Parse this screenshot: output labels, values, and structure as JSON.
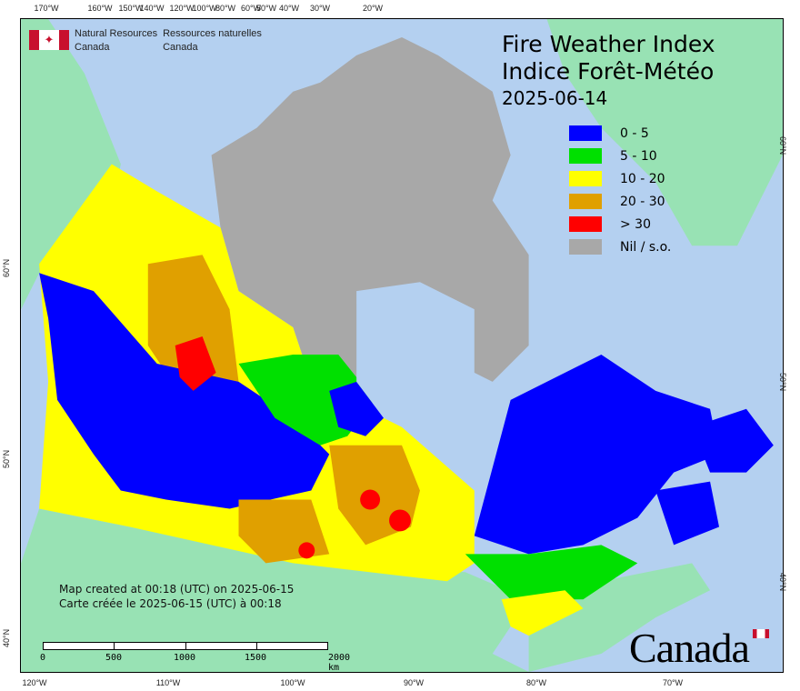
{
  "header": {
    "agency_en_1": "Natural Resources",
    "agency_en_2": "Canada",
    "agency_fr_1": "Ressources naturelles",
    "agency_fr_2": "Canada"
  },
  "title": {
    "en": "Fire Weather Index",
    "fr": "Indice Forêt-Météo",
    "date": "2025-06-14"
  },
  "legend": [
    {
      "label": "0 - 5",
      "color": "#0000ff"
    },
    {
      "label": "5 - 10",
      "color": "#00e000"
    },
    {
      "label": "10 - 20",
      "color": "#ffff00"
    },
    {
      "label": "20 - 30",
      "color": "#e0a000"
    },
    {
      "label": "> 30",
      "color": "#ff0000"
    },
    {
      "label": "Nil / s.o.",
      "color": "#a8a8a8"
    }
  ],
  "colors": {
    "ocean": "#b4d0f0",
    "land_other": "#98e2b4",
    "nil": "#a8a8a8"
  },
  "created": {
    "en": "Map created at 00:18 (UTC) on 2025-06-15",
    "fr": "Carte créée le 2025-06-15 (UTC) à 00:18"
  },
  "scale": {
    "labels": [
      "0",
      "500",
      "1000",
      "1500",
      "2000  km"
    ]
  },
  "ticks": {
    "top": [
      "170°W",
      "160°W",
      "150°W",
      "140°W",
      "120°W",
      "100°W",
      "80°W",
      "60°W",
      "50°W",
      "40°W",
      "30°W",
      "20°W"
    ],
    "bottom": [
      "120°W",
      "110°W",
      "100°W",
      "90°W",
      "80°W",
      "70°W"
    ],
    "left": [
      "60°N",
      "50°N",
      "40°N"
    ],
    "right": [
      "60°N",
      "50°N",
      "40°N"
    ]
  },
  "wordmark": "Canada"
}
